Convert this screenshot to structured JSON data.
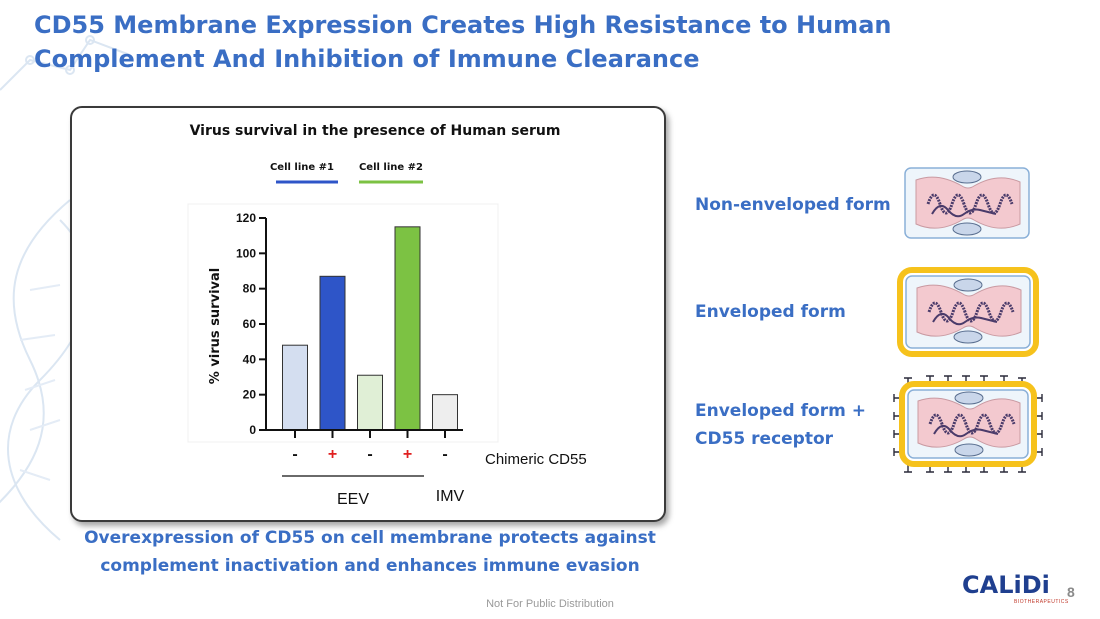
{
  "slide": {
    "title_line1": "CD55 Membrane Expression Creates High Resistance to Human",
    "title_line2": "Complement And Inhibition of Immune Clearance",
    "caption_line1": "Overexpression of CD55 on cell membrane protects against",
    "caption_line2": "complement inactivation and enhances immune evasion",
    "footer": "Not For Public Distribution",
    "page_number": "8",
    "logo_text": "CALiDi",
    "logo_subtext": "BIOTHERAPEUTICS"
  },
  "forms": [
    {
      "line1": "Non-enveloped form",
      "line2": "",
      "icon": "non-enveloped-virus-icon"
    },
    {
      "line1": "Enveloped form",
      "line2": "",
      "icon": "enveloped-virus-icon"
    },
    {
      "line1": "Enveloped form  +",
      "line2": "CD55 receptor",
      "icon": "enveloped-cd55-virus-icon"
    }
  ],
  "colors": {
    "title": "#3a6ec4",
    "cell_line_1": "#2e55c8",
    "cell_line_2": "#7cc243",
    "cell_line_1_light": "#d4def0",
    "cell_line_2_light": "#e0efd6",
    "imv": "#eeeeee",
    "plus": "#e02020",
    "envelope": "#f6c21c"
  },
  "chart_data": {
    "type": "bar",
    "title": "Virus survival in the presence of Human serum",
    "ylabel": "% virus survival",
    "xlabel": "",
    "ylim": [
      0,
      120
    ],
    "yticks": [
      0,
      20,
      40,
      60,
      80,
      100,
      120
    ],
    "legend": [
      {
        "name": "Cell line #1",
        "color": "#2e55c8"
      },
      {
        "name": "Cell line #2",
        "color": "#7cc243"
      }
    ],
    "legend_position": "top",
    "bars": [
      {
        "condition": "-",
        "group": "EEV",
        "series": "Cell line #1",
        "value": 48,
        "fill": "#d4def0"
      },
      {
        "condition": "+",
        "group": "EEV",
        "series": "Cell line #1",
        "value": 87,
        "fill": "#2e55c8"
      },
      {
        "condition": "-",
        "group": "EEV",
        "series": "Cell line #2",
        "value": 31,
        "fill": "#e0efd6"
      },
      {
        "condition": "+",
        "group": "EEV",
        "series": "Cell line #2",
        "value": 115,
        "fill": "#7cc243"
      },
      {
        "condition": "-",
        "group": "IMV",
        "series": "",
        "value": 20,
        "fill": "#eeeeee"
      }
    ],
    "condition_label": "Chimeric CD55",
    "group_labels": [
      "EEV",
      "IMV"
    ]
  }
}
